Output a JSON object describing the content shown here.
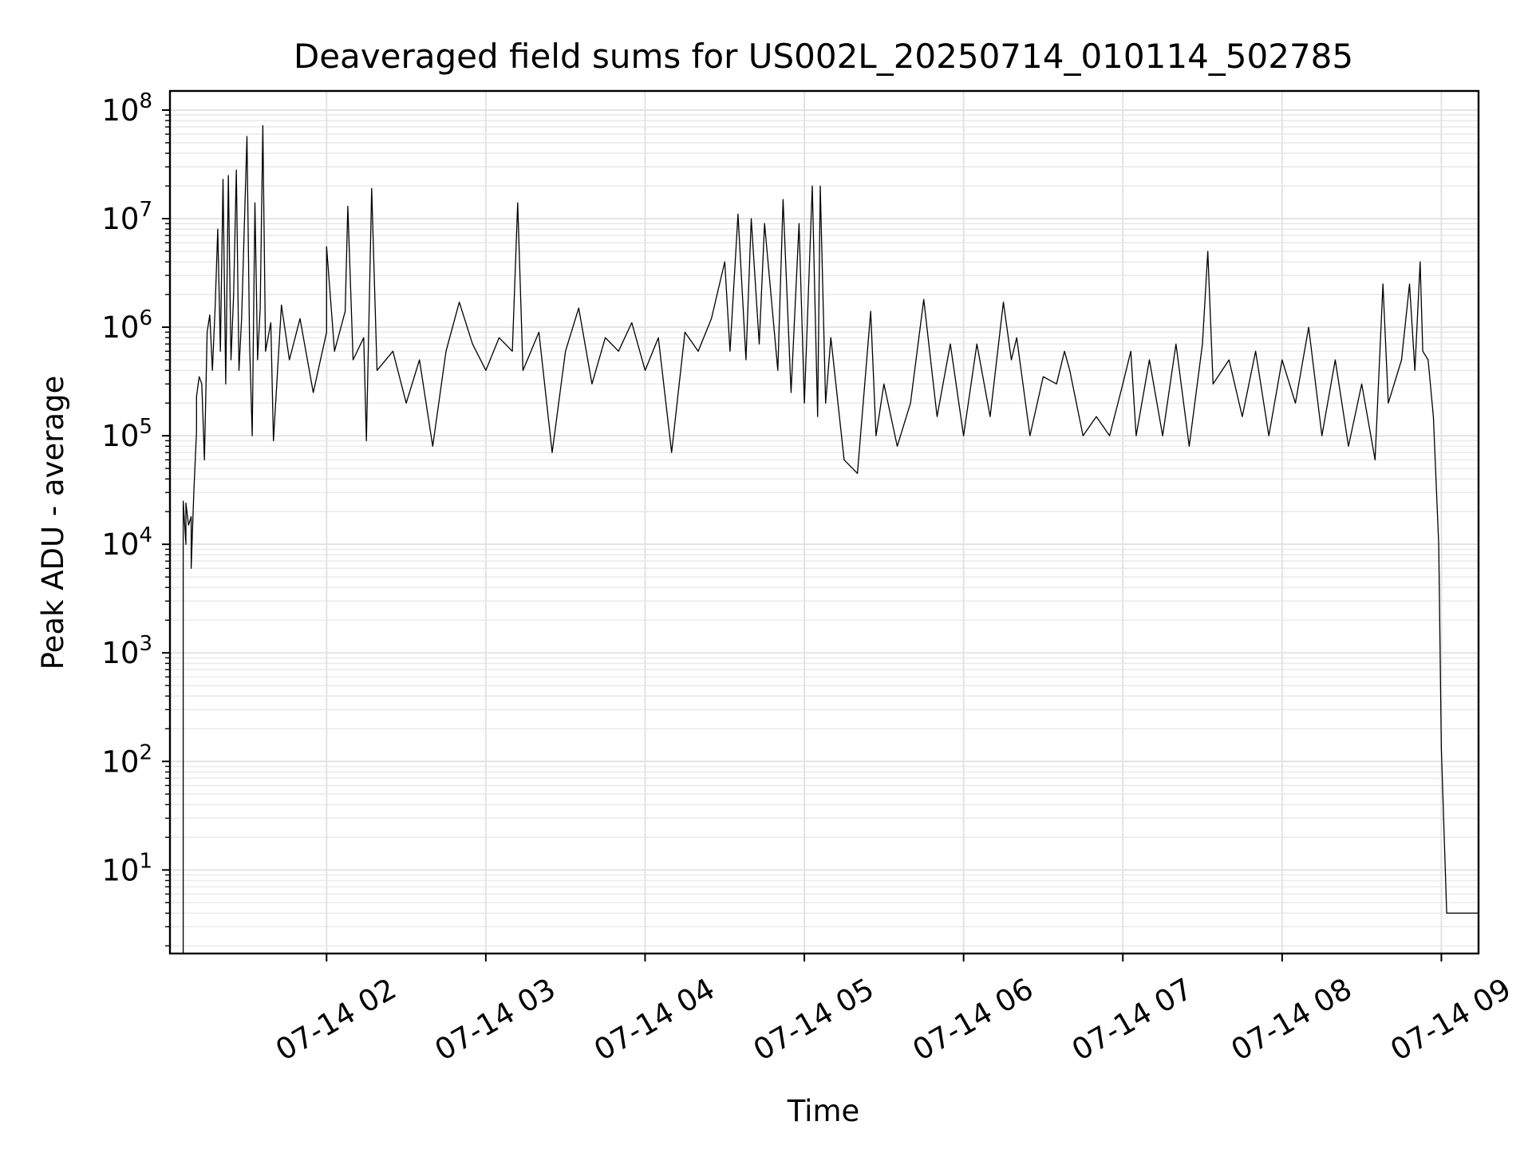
{
  "chart_data": {
    "type": "line",
    "title": "Deaveraged field sums for US002L_20250714_010114_502785",
    "xlabel": "Time",
    "ylabel": "Peak ADU - average",
    "yscale": "log",
    "ylim": [
      1.7,
      150000000
    ],
    "xlim": [
      "2025-07-14 01:01",
      "2025-07-14 09:14"
    ],
    "grid": true,
    "x_ticks": [
      {
        "t": "2025-07-14 02:00",
        "label": "07-14 02"
      },
      {
        "t": "2025-07-14 03:00",
        "label": "07-14 03"
      },
      {
        "t": "2025-07-14 04:00",
        "label": "07-14 04"
      },
      {
        "t": "2025-07-14 05:00",
        "label": "07-14 05"
      },
      {
        "t": "2025-07-14 06:00",
        "label": "07-14 06"
      },
      {
        "t": "2025-07-14 07:00",
        "label": "07-14 07"
      },
      {
        "t": "2025-07-14 08:00",
        "label": "07-14 08"
      },
      {
        "t": "2025-07-14 09:00",
        "label": "07-14 09"
      }
    ],
    "y_ticks": [
      {
        "value": 10,
        "base": "10",
        "exp": "1"
      },
      {
        "value": 100,
        "base": "10",
        "exp": "2"
      },
      {
        "value": 1000,
        "base": "10",
        "exp": "3"
      },
      {
        "value": 10000,
        "base": "10",
        "exp": "4"
      },
      {
        "value": 100000,
        "base": "10",
        "exp": "5"
      },
      {
        "value": 1000000,
        "base": "10",
        "exp": "6"
      },
      {
        "value": 10000000,
        "base": "10",
        "exp": "7"
      },
      {
        "value": 100000000,
        "base": "10",
        "exp": "8"
      }
    ],
    "series": [
      {
        "color": "#000000",
        "points": [
          [
            "2025-07-14 01:06",
            1.7
          ],
          [
            "2025-07-14 01:06",
            25000
          ],
          [
            "2025-07-14 01:07",
            10000
          ],
          [
            "2025-07-14 01:07",
            24000
          ],
          [
            "2025-07-14 01:08",
            15000
          ],
          [
            "2025-07-14 01:09",
            18000
          ],
          [
            "2025-07-14 01:09",
            6000
          ],
          [
            "2025-07-14 01:10",
            30000
          ],
          [
            "2025-07-14 01:11",
            110000
          ],
          [
            "2025-07-14 01:11",
            230000
          ],
          [
            "2025-07-14 01:12",
            350000
          ],
          [
            "2025-07-14 01:13",
            300000
          ],
          [
            "2025-07-14 01:14",
            60000
          ],
          [
            "2025-07-14 01:15",
            900000
          ],
          [
            "2025-07-14 01:16",
            1300000
          ],
          [
            "2025-07-14 01:17",
            400000
          ],
          [
            "2025-07-14 01:18",
            1500000
          ],
          [
            "2025-07-14 01:19",
            8000000
          ],
          [
            "2025-07-14 01:20",
            600000
          ],
          [
            "2025-07-14 01:21",
            23000000
          ],
          [
            "2025-07-14 01:22",
            300000
          ],
          [
            "2025-07-14 01:23",
            25000000
          ],
          [
            "2025-07-14 01:24",
            500000
          ],
          [
            "2025-07-14 01:25",
            2000000
          ],
          [
            "2025-07-14 01:26",
            28000000
          ],
          [
            "2025-07-14 01:27",
            400000
          ],
          [
            "2025-07-14 01:28",
            1200000
          ],
          [
            "2025-07-14 01:30",
            57000000
          ],
          [
            "2025-07-14 01:31",
            700000
          ],
          [
            "2025-07-14 01:32",
            100000
          ],
          [
            "2025-07-14 01:33",
            14000000
          ],
          [
            "2025-07-14 01:34",
            500000
          ],
          [
            "2025-07-14 01:35",
            1500000
          ],
          [
            "2025-07-14 01:36",
            72000000
          ],
          [
            "2025-07-14 01:37",
            600000
          ],
          [
            "2025-07-14 01:39",
            1100000
          ],
          [
            "2025-07-14 01:40",
            90000
          ],
          [
            "2025-07-14 01:43",
            1600000
          ],
          [
            "2025-07-14 01:46",
            500000
          ],
          [
            "2025-07-14 01:50",
            1200000
          ],
          [
            "2025-07-14 01:55",
            250000
          ],
          [
            "2025-07-14 02:00",
            900000
          ],
          [
            "2025-07-14 02:00",
            5500000
          ],
          [
            "2025-07-14 02:03",
            600000
          ],
          [
            "2025-07-14 02:07",
            1400000
          ],
          [
            "2025-07-14 02:08",
            13000000
          ],
          [
            "2025-07-14 02:10",
            500000
          ],
          [
            "2025-07-14 02:14",
            800000
          ],
          [
            "2025-07-14 02:15",
            90000
          ],
          [
            "2025-07-14 02:17",
            19000000
          ],
          [
            "2025-07-14 02:19",
            400000
          ],
          [
            "2025-07-14 02:25",
            600000
          ],
          [
            "2025-07-14 02:30",
            200000
          ],
          [
            "2025-07-14 02:35",
            500000
          ],
          [
            "2025-07-14 02:40",
            80000
          ],
          [
            "2025-07-14 02:45",
            600000
          ],
          [
            "2025-07-14 02:50",
            1700000
          ],
          [
            "2025-07-14 02:55",
            700000
          ],
          [
            "2025-07-14 03:00",
            400000
          ],
          [
            "2025-07-14 03:05",
            800000
          ],
          [
            "2025-07-14 03:10",
            600000
          ],
          [
            "2025-07-14 03:12",
            14000000
          ],
          [
            "2025-07-14 03:14",
            400000
          ],
          [
            "2025-07-14 03:20",
            900000
          ],
          [
            "2025-07-14 03:25",
            70000
          ],
          [
            "2025-07-14 03:30",
            600000
          ],
          [
            "2025-07-14 03:35",
            1500000
          ],
          [
            "2025-07-14 03:40",
            300000
          ],
          [
            "2025-07-14 03:45",
            800000
          ],
          [
            "2025-07-14 03:50",
            600000
          ],
          [
            "2025-07-14 03:55",
            1100000
          ],
          [
            "2025-07-14 04:00",
            400000
          ],
          [
            "2025-07-14 04:05",
            800000
          ],
          [
            "2025-07-14 04:10",
            70000
          ],
          [
            "2025-07-14 04:15",
            900000
          ],
          [
            "2025-07-14 04:20",
            600000
          ],
          [
            "2025-07-14 04:25",
            1200000
          ],
          [
            "2025-07-14 04:30",
            4000000
          ],
          [
            "2025-07-14 04:32",
            600000
          ],
          [
            "2025-07-14 04:35",
            11000000
          ],
          [
            "2025-07-14 04:38",
            500000
          ],
          [
            "2025-07-14 04:40",
            10000000
          ],
          [
            "2025-07-14 04:43",
            700000
          ],
          [
            "2025-07-14 04:45",
            9000000
          ],
          [
            "2025-07-14 04:50",
            400000
          ],
          [
            "2025-07-14 04:52",
            15000000
          ],
          [
            "2025-07-14 04:55",
            250000
          ],
          [
            "2025-07-14 04:58",
            9000000
          ],
          [
            "2025-07-14 05:00",
            200000
          ],
          [
            "2025-07-14 05:03",
            20000000
          ],
          [
            "2025-07-14 05:05",
            150000
          ],
          [
            "2025-07-14 05:06",
            20000000
          ],
          [
            "2025-07-14 05:08",
            200000
          ],
          [
            "2025-07-14 05:10",
            800000
          ],
          [
            "2025-07-14 05:15",
            60000
          ],
          [
            "2025-07-14 05:20",
            45000
          ],
          [
            "2025-07-14 05:25",
            1400000
          ],
          [
            "2025-07-14 05:27",
            100000
          ],
          [
            "2025-07-14 05:30",
            300000
          ],
          [
            "2025-07-14 05:35",
            80000
          ],
          [
            "2025-07-14 05:40",
            200000
          ],
          [
            "2025-07-14 05:45",
            1800000
          ],
          [
            "2025-07-14 05:50",
            150000
          ],
          [
            "2025-07-14 05:55",
            700000
          ],
          [
            "2025-07-14 06:00",
            100000
          ],
          [
            "2025-07-14 06:05",
            700000
          ],
          [
            "2025-07-14 06:10",
            150000
          ],
          [
            "2025-07-14 06:15",
            1700000
          ],
          [
            "2025-07-14 06:18",
            500000
          ],
          [
            "2025-07-14 06:20",
            800000
          ],
          [
            "2025-07-14 06:25",
            100000
          ],
          [
            "2025-07-14 06:30",
            350000
          ],
          [
            "2025-07-14 06:35",
            300000
          ],
          [
            "2025-07-14 06:38",
            600000
          ],
          [
            "2025-07-14 06:40",
            400000
          ],
          [
            "2025-07-14 06:45",
            100000
          ],
          [
            "2025-07-14 06:50",
            150000
          ],
          [
            "2025-07-14 06:55",
            100000
          ],
          [
            "2025-07-14 07:00",
            300000
          ],
          [
            "2025-07-14 07:03",
            600000
          ],
          [
            "2025-07-14 07:05",
            100000
          ],
          [
            "2025-07-14 07:10",
            500000
          ],
          [
            "2025-07-14 07:15",
            100000
          ],
          [
            "2025-07-14 07:20",
            700000
          ],
          [
            "2025-07-14 07:25",
            80000
          ],
          [
            "2025-07-14 07:30",
            700000
          ],
          [
            "2025-07-14 07:32",
            5000000
          ],
          [
            "2025-07-14 07:34",
            300000
          ],
          [
            "2025-07-14 07:40",
            500000
          ],
          [
            "2025-07-14 07:45",
            150000
          ],
          [
            "2025-07-14 07:50",
            600000
          ],
          [
            "2025-07-14 07:55",
            100000
          ],
          [
            "2025-07-14 08:00",
            500000
          ],
          [
            "2025-07-14 08:05",
            200000
          ],
          [
            "2025-07-14 08:10",
            1000000
          ],
          [
            "2025-07-14 08:15",
            100000
          ],
          [
            "2025-07-14 08:20",
            500000
          ],
          [
            "2025-07-14 08:25",
            80000
          ],
          [
            "2025-07-14 08:30",
            300000
          ],
          [
            "2025-07-14 08:35",
            60000
          ],
          [
            "2025-07-14 08:38",
            2500000
          ],
          [
            "2025-07-14 08:40",
            200000
          ],
          [
            "2025-07-14 08:45",
            500000
          ],
          [
            "2025-07-14 08:48",
            2500000
          ],
          [
            "2025-07-14 08:50",
            400000
          ],
          [
            "2025-07-14 08:52",
            4000000
          ],
          [
            "2025-07-14 08:53",
            600000
          ],
          [
            "2025-07-14 08:55",
            500000
          ],
          [
            "2025-07-14 08:57",
            150000
          ],
          [
            "2025-07-14 08:59",
            10000
          ],
          [
            "2025-07-14 09:00",
            130
          ],
          [
            "2025-07-14 09:02",
            4
          ],
          [
            "2025-07-14 09:14",
            4
          ]
        ]
      }
    ]
  }
}
